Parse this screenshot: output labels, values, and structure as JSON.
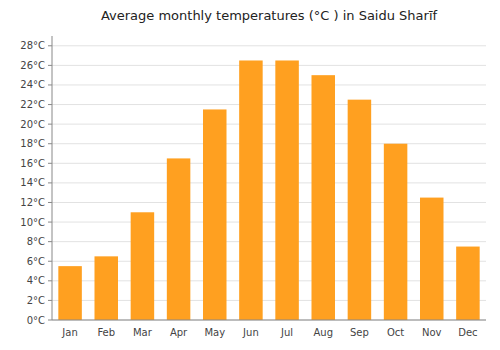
{
  "chart_data": {
    "type": "bar",
    "title": "Average monthly temperatures (°C ) in Saidu Sharīf",
    "categories": [
      "Jan",
      "Feb",
      "Mar",
      "Apr",
      "May",
      "Jun",
      "Jul",
      "Aug",
      "Sep",
      "Oct",
      "Nov",
      "Dec"
    ],
    "values": [
      5.5,
      6.5,
      11.0,
      16.5,
      21.5,
      26.5,
      26.5,
      25.0,
      22.5,
      18.0,
      12.5,
      7.5
    ],
    "color": "#FFA020",
    "ylim": [
      0,
      29
    ],
    "yticks": [
      {
        "value": 0,
        "label": "0°C"
      },
      {
        "value": 2,
        "label": "2°C"
      },
      {
        "value": 4,
        "label": "4°C"
      },
      {
        "value": 6,
        "label": "6°C"
      },
      {
        "value": 8,
        "label": "8°C"
      },
      {
        "value": 10,
        "label": "10°C"
      },
      {
        "value": 12,
        "label": "12°C"
      },
      {
        "value": 14,
        "label": "14°C"
      },
      {
        "value": 16,
        "label": "16°C"
      },
      {
        "value": 18,
        "label": "18°C"
      },
      {
        "value": 20,
        "label": "20°C"
      },
      {
        "value": 22,
        "label": "22°C"
      },
      {
        "value": 24,
        "label": "24°C"
      },
      {
        "value": 26,
        "label": "26°C"
      },
      {
        "value": 28,
        "label": "28°C"
      }
    ],
    "grid": true
  }
}
